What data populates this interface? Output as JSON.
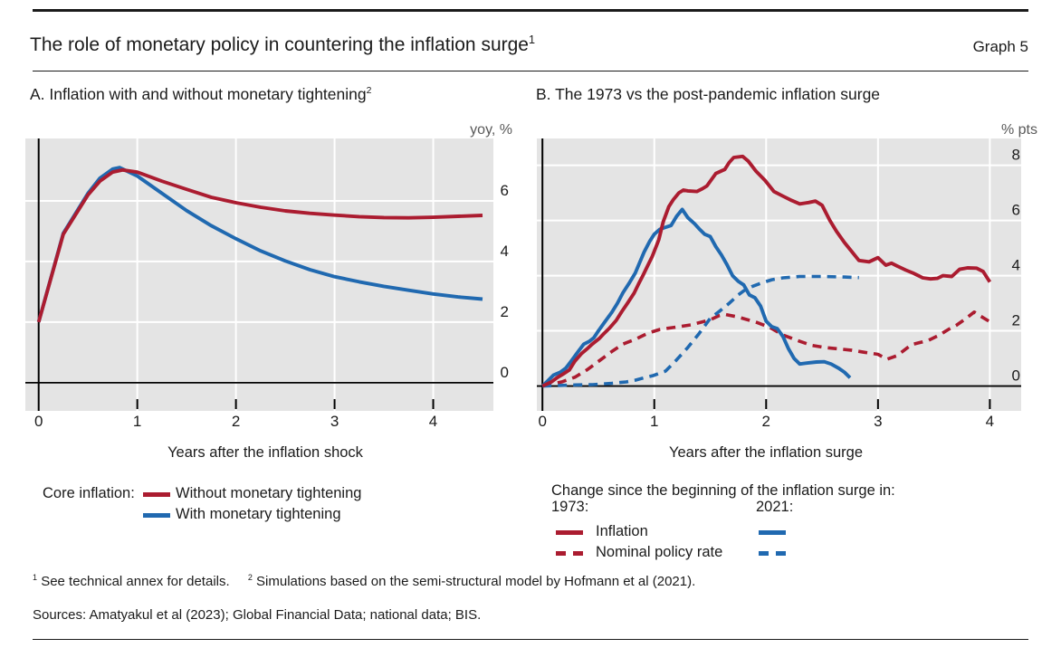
{
  "colors": {
    "red": "#ab1c30",
    "blue": "#2069b0",
    "plot_bg": "#e4e4e4",
    "grid": "#ffffff",
    "axis": "#000000",
    "unit_text": "#595959",
    "text": "#1b1b1b"
  },
  "header": {
    "title": "The role of monetary policy in countering the inflation surge",
    "title_footnote_ref": "1",
    "graph_label": "Graph 5"
  },
  "panel_a": {
    "title": "A. Inflation with and without monetary tightening",
    "title_footnote_ref": "2",
    "xlabel": "Years after the inflation shock",
    "legend": {
      "prefix": "Core inflation:",
      "items": [
        {
          "label": "Without monetary tightening",
          "color": "red",
          "style": "solid"
        },
        {
          "label": "With monetary tightening",
          "color": "blue",
          "style": "solid"
        }
      ]
    }
  },
  "panel_b": {
    "title": "B. The 1973 vs the post-pandemic inflation surge",
    "xlabel": "Years after the inflation surge",
    "legend": {
      "header": "Change since the beginning of the inflation surge in:",
      "col_1973": "1973:",
      "col_2021": "2021:",
      "rows": [
        {
          "label": "Inflation",
          "style": "solid"
        },
        {
          "label": "Nominal policy rate",
          "style": "dashed"
        }
      ]
    }
  },
  "footnotes": [
    {
      "ref": "1",
      "text": "See technical annex for details."
    },
    {
      "ref": "2",
      "text": "Simulations based on the semi-structural model by Hofmann et al (2021)."
    }
  ],
  "sources": "Sources: Amatyakul et al (2023); Global Financial Data; national data; BIS.",
  "chart_data": [
    {
      "type": "line",
      "panel": "A",
      "title": "A. Inflation with and without monetary tightening",
      "unit": "yoy, %",
      "xlabel": "Years after the inflation shock",
      "xlim": [
        -0.135,
        4.61
      ],
      "ylim": [
        -0.93,
        8.06
      ],
      "xticks": [
        0,
        1,
        2,
        3,
        4
      ],
      "yticks": [
        0,
        2,
        4,
        6
      ],
      "grid": true,
      "legend_position": "below",
      "series": [
        {
          "name": "With monetary tightening",
          "color": "blue",
          "style": "solid",
          "points": [
            [
              0,
              2.0
            ],
            [
              0.25,
              4.93
            ],
            [
              0.5,
              6.25
            ],
            [
              0.62,
              6.75
            ],
            [
              0.75,
              7.05
            ],
            [
              0.82,
              7.1
            ],
            [
              1.0,
              6.82
            ],
            [
              1.25,
              6.25
            ],
            [
              1.5,
              5.68
            ],
            [
              1.75,
              5.18
            ],
            [
              2.0,
              4.75
            ],
            [
              2.25,
              4.35
            ],
            [
              2.5,
              4.02
            ],
            [
              2.75,
              3.73
            ],
            [
              3.0,
              3.5
            ],
            [
              3.25,
              3.33
            ],
            [
              3.5,
              3.18
            ],
            [
              3.75,
              3.05
            ],
            [
              4.0,
              2.93
            ],
            [
              4.25,
              2.83
            ],
            [
              4.5,
              2.76
            ]
          ]
        },
        {
          "name": "Without monetary tightening",
          "color": "red",
          "style": "solid",
          "points": [
            [
              0,
              2.0
            ],
            [
              0.25,
              4.9
            ],
            [
              0.5,
              6.2
            ],
            [
              0.62,
              6.65
            ],
            [
              0.75,
              6.95
            ],
            [
              0.85,
              7.02
            ],
            [
              1.0,
              6.95
            ],
            [
              1.25,
              6.65
            ],
            [
              1.5,
              6.38
            ],
            [
              1.75,
              6.12
            ],
            [
              2.0,
              5.94
            ],
            [
              2.25,
              5.79
            ],
            [
              2.5,
              5.67
            ],
            [
              2.75,
              5.59
            ],
            [
              3.0,
              5.53
            ],
            [
              3.25,
              5.48
            ],
            [
              3.5,
              5.45
            ],
            [
              3.75,
              5.44
            ],
            [
              4.0,
              5.46
            ],
            [
              4.25,
              5.49
            ],
            [
              4.5,
              5.52
            ]
          ]
        }
      ]
    },
    {
      "type": "line",
      "panel": "B",
      "title": "B. The 1973 vs the post-pandemic inflation surge",
      "unit": "% pts",
      "xlabel": "Years after the inflation surge",
      "xlim": [
        -0.05,
        4.28
      ],
      "ylim": [
        -0.9,
        8.97
      ],
      "xticks": [
        0,
        1,
        2,
        3,
        4
      ],
      "yticks": [
        0,
        2,
        4,
        6,
        8
      ],
      "grid": true,
      "legend_position": "below",
      "series": [
        {
          "name": "1973 Nominal policy rate",
          "color": "red",
          "style": "dashed",
          "points": [
            [
              0,
              0.02
            ],
            [
              0.1,
              0.08
            ],
            [
              0.18,
              0.16
            ],
            [
              0.29,
              0.32
            ],
            [
              0.4,
              0.59
            ],
            [
              0.51,
              0.92
            ],
            [
              0.62,
              1.25
            ],
            [
              0.72,
              1.52
            ],
            [
              0.83,
              1.69
            ],
            [
              0.94,
              1.91
            ],
            [
              1.05,
              2.05
            ],
            [
              1.17,
              2.12
            ],
            [
              1.33,
              2.22
            ],
            [
              1.5,
              2.4
            ],
            [
              1.58,
              2.55
            ],
            [
              1.63,
              2.6
            ],
            [
              1.75,
              2.5
            ],
            [
              1.92,
              2.3
            ],
            [
              2.03,
              2.13
            ],
            [
              2.15,
              1.85
            ],
            [
              2.28,
              1.65
            ],
            [
              2.4,
              1.48
            ],
            [
              2.52,
              1.4
            ],
            [
              2.64,
              1.35
            ],
            [
              2.76,
              1.3
            ],
            [
              2.88,
              1.22
            ],
            [
              3.0,
              1.15
            ],
            [
              3.08,
              0.97
            ],
            [
              3.17,
              1.1
            ],
            [
              3.3,
              1.5
            ],
            [
              3.45,
              1.65
            ],
            [
              3.55,
              1.85
            ],
            [
              3.63,
              2.05
            ],
            [
              3.7,
              2.2
            ],
            [
              3.77,
              2.4
            ],
            [
              3.86,
              2.68
            ],
            [
              3.93,
              2.5
            ],
            [
              4.0,
              2.33
            ]
          ]
        },
        {
          "name": "2021 Nominal policy rate",
          "color": "blue",
          "style": "dashed",
          "points": [
            [
              0,
              0.0
            ],
            [
              0.15,
              0.02
            ],
            [
              0.3,
              0.04
            ],
            [
              0.45,
              0.05
            ],
            [
              0.62,
              0.1
            ],
            [
              0.75,
              0.15
            ],
            [
              0.83,
              0.21
            ],
            [
              0.91,
              0.3
            ],
            [
              0.99,
              0.38
            ],
            [
              1.1,
              0.54
            ],
            [
              1.2,
              0.95
            ],
            [
              1.3,
              1.4
            ],
            [
              1.4,
              1.9
            ],
            [
              1.5,
              2.45
            ],
            [
              1.58,
              2.7
            ],
            [
              1.67,
              3.0
            ],
            [
              1.75,
              3.3
            ],
            [
              1.8,
              3.45
            ],
            [
              1.87,
              3.6
            ],
            [
              1.95,
              3.72
            ],
            [
              2.05,
              3.85
            ],
            [
              2.15,
              3.92
            ],
            [
              2.3,
              3.97
            ],
            [
              2.5,
              3.97
            ],
            [
              2.7,
              3.95
            ],
            [
              2.83,
              3.93
            ]
          ]
        },
        {
          "name": "2021 Inflation",
          "color": "blue",
          "style": "solid",
          "points": [
            [
              0,
              0
            ],
            [
              0.05,
              0.2
            ],
            [
              0.1,
              0.4
            ],
            [
              0.16,
              0.5
            ],
            [
              0.21,
              0.65
            ],
            [
              0.26,
              0.92
            ],
            [
              0.32,
              1.25
            ],
            [
              0.37,
              1.52
            ],
            [
              0.42,
              1.62
            ],
            [
              0.46,
              1.75
            ],
            [
              0.5,
              2.0
            ],
            [
              0.56,
              2.34
            ],
            [
              0.62,
              2.67
            ],
            [
              0.67,
              3.0
            ],
            [
              0.72,
              3.38
            ],
            [
              0.78,
              3.76
            ],
            [
              0.83,
              4.09
            ],
            [
              0.87,
              4.48
            ],
            [
              0.91,
              4.86
            ],
            [
              0.96,
              5.25
            ],
            [
              1.0,
              5.5
            ],
            [
              1.05,
              5.68
            ],
            [
              1.1,
              5.75
            ],
            [
              1.15,
              5.82
            ],
            [
              1.2,
              6.15
            ],
            [
              1.25,
              6.4
            ],
            [
              1.3,
              6.1
            ],
            [
              1.36,
              5.88
            ],
            [
              1.4,
              5.7
            ],
            [
              1.45,
              5.5
            ],
            [
              1.5,
              5.42
            ],
            [
              1.55,
              5.05
            ],
            [
              1.6,
              4.75
            ],
            [
              1.65,
              4.4
            ],
            [
              1.7,
              4.0
            ],
            [
              1.75,
              3.8
            ],
            [
              1.8,
              3.66
            ],
            [
              1.85,
              3.3
            ],
            [
              1.9,
              3.2
            ],
            [
              1.95,
              2.9
            ],
            [
              2.0,
              2.35
            ],
            [
              2.05,
              2.15
            ],
            [
              2.1,
              2.08
            ],
            [
              2.15,
              1.8
            ],
            [
              2.2,
              1.35
            ],
            [
              2.25,
              1.0
            ],
            [
              2.3,
              0.8
            ],
            [
              2.38,
              0.84
            ],
            [
              2.45,
              0.87
            ],
            [
              2.52,
              0.88
            ],
            [
              2.58,
              0.8
            ],
            [
              2.65,
              0.64
            ],
            [
              2.7,
              0.5
            ],
            [
              2.75,
              0.3
            ]
          ]
        },
        {
          "name": "1973 Inflation",
          "color": "red",
          "style": "solid",
          "points": [
            [
              0,
              0
            ],
            [
              0.08,
              0.15
            ],
            [
              0.13,
              0.3
            ],
            [
              0.18,
              0.42
            ],
            [
              0.24,
              0.58
            ],
            [
              0.29,
              0.9
            ],
            [
              0.35,
              1.18
            ],
            [
              0.4,
              1.35
            ],
            [
              0.44,
              1.5
            ],
            [
              0.51,
              1.73
            ],
            [
              0.55,
              1.9
            ],
            [
              0.6,
              2.1
            ],
            [
              0.66,
              2.38
            ],
            [
              0.71,
              2.7
            ],
            [
              0.76,
              3.0
            ],
            [
              0.82,
              3.37
            ],
            [
              0.86,
              3.7
            ],
            [
              0.9,
              4.02
            ],
            [
              0.94,
              4.35
            ],
            [
              0.98,
              4.68
            ],
            [
              1.04,
              5.3
            ],
            [
              1.08,
              5.95
            ],
            [
              1.13,
              6.5
            ],
            [
              1.17,
              6.75
            ],
            [
              1.22,
              7.0
            ],
            [
              1.26,
              7.1
            ],
            [
              1.3,
              7.07
            ],
            [
              1.38,
              7.05
            ],
            [
              1.43,
              7.15
            ],
            [
              1.47,
              7.25
            ],
            [
              1.55,
              7.7
            ],
            [
              1.63,
              7.85
            ],
            [
              1.67,
              8.1
            ],
            [
              1.71,
              8.28
            ],
            [
              1.79,
              8.32
            ],
            [
              1.84,
              8.15
            ],
            [
              1.91,
              7.78
            ],
            [
              1.99,
              7.45
            ],
            [
              2.07,
              7.05
            ],
            [
              2.15,
              6.88
            ],
            [
              2.23,
              6.72
            ],
            [
              2.3,
              6.6
            ],
            [
              2.38,
              6.65
            ],
            [
              2.44,
              6.7
            ],
            [
              2.5,
              6.55
            ],
            [
              2.57,
              6.0
            ],
            [
              2.63,
              5.6
            ],
            [
              2.7,
              5.2
            ],
            [
              2.77,
              4.85
            ],
            [
              2.83,
              4.55
            ],
            [
              2.92,
              4.5
            ],
            [
              3.0,
              4.65
            ],
            [
              3.07,
              4.38
            ],
            [
              3.12,
              4.45
            ],
            [
              3.17,
              4.35
            ],
            [
              3.25,
              4.2
            ],
            [
              3.32,
              4.08
            ],
            [
              3.4,
              3.92
            ],
            [
              3.47,
              3.88
            ],
            [
              3.53,
              3.9
            ],
            [
              3.58,
              4.0
            ],
            [
              3.66,
              3.97
            ],
            [
              3.73,
              4.23
            ],
            [
              3.8,
              4.28
            ],
            [
              3.88,
              4.27
            ],
            [
              3.94,
              4.15
            ],
            [
              4.0,
              3.77
            ]
          ]
        }
      ]
    }
  ]
}
